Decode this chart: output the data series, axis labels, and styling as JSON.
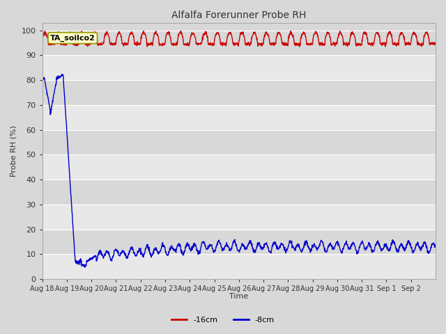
{
  "title": "Alfalfa Forerunner Probe RH",
  "ylabel": "Probe RH (%)",
  "xlabel": "Time",
  "annotation": "TA_soilco2",
  "legend": [
    {
      "label": "-16cm",
      "color": "#cc0000"
    },
    {
      "label": "-8cm",
      "color": "#0000cc"
    }
  ],
  "ylim": [
    0,
    103
  ],
  "yticks": [
    0,
    10,
    20,
    30,
    40,
    50,
    60,
    70,
    80,
    90,
    100
  ],
  "background_color": "#d8d8d8",
  "axes_bg_color": "#d8d8d8",
  "plot_bg_light": "#e8e8e8",
  "plot_bg_dark": "#d8d8d8",
  "grid_color": "#ffffff",
  "figsize": [
    6.4,
    4.8
  ],
  "dpi": 100
}
